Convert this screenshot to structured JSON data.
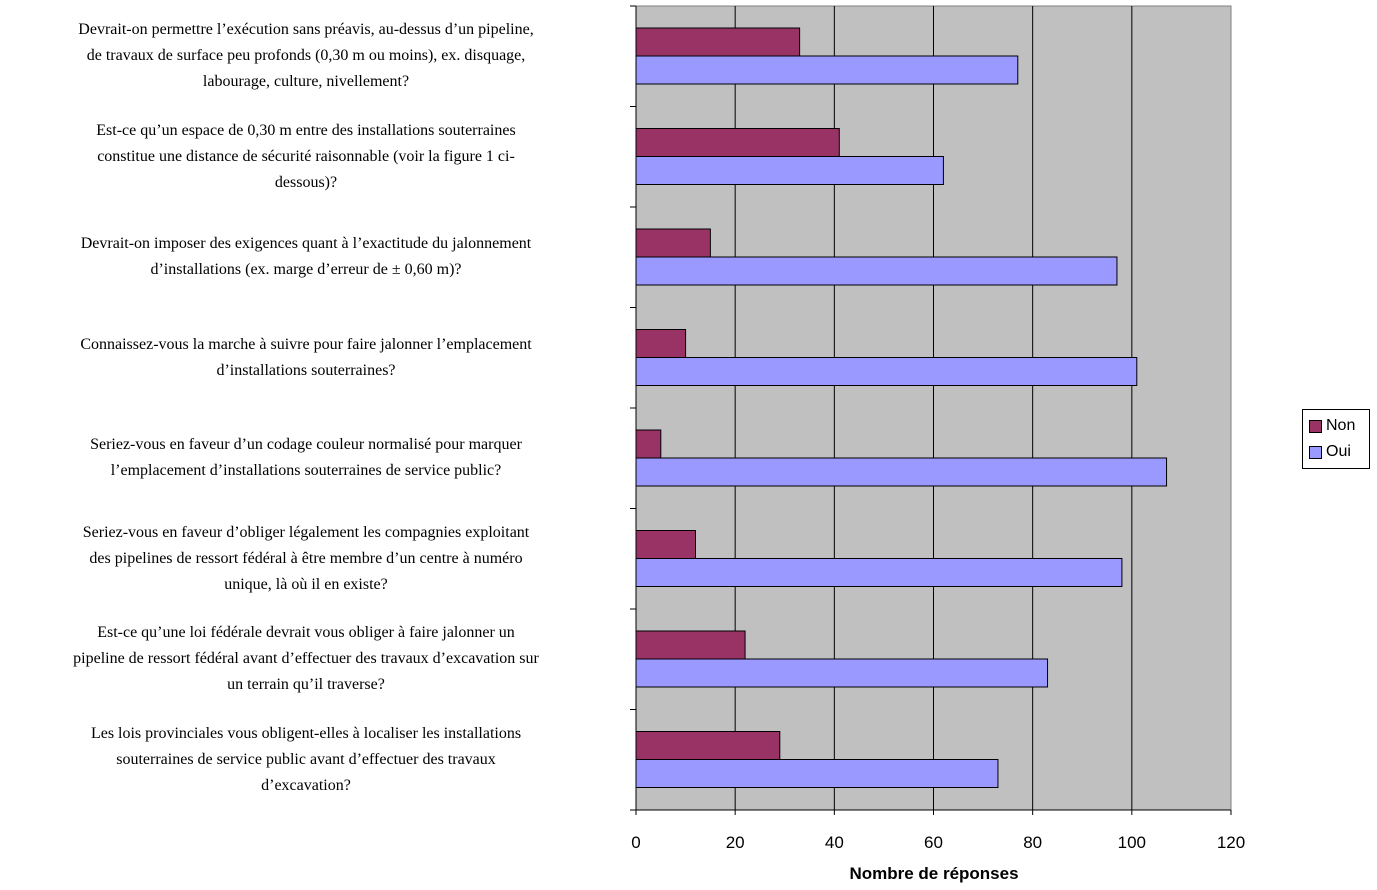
{
  "chart_data": {
    "type": "bar",
    "orientation": "horizontal",
    "categories": [
      "Devrait-on permettre l’exécution sans préavis, au-dessus d’un pipeline, de travaux de surface peu profonds (0,30 m ou moins), ex. disquage, labourage, culture, nivellement?",
      "Est-ce qu’un espace de 0,30 m entre des installations souterraines constitue une distance de sécurité raisonnable (voir la figure 1 ci-dessous)?",
      "Devrait-on imposer des exigences quant à l’exactitude du jalonnement d’installations (ex. marge d’erreur de ± 0,60 m)?",
      "Connaissez-vous la marche à suivre pour faire jalonner l’emplacement d’installations souterraines?",
      "Seriez-vous en faveur d’un codage couleur normalisé pour marquer l’emplacement d’installations souterraines de service public?",
      "Seriez-vous en faveur d’obliger légalement les compagnies exploitant des pipelines de ressort fédéral à être membre d’un centre à numéro unique, là où il en existe?",
      "Est-ce qu’une loi fédérale devrait vous obliger à faire jalonner un pipeline de ressort fédéral avant d’effectuer des travaux d’excavation sur un terrain qu’il traverse?",
      "Les lois provinciales vous obligent-elles à localiser les installations souterraines de service public avant d’effectuer des travaux d’excavation?"
    ],
    "category_lines": [
      [
        "Devrait-on permettre l’exécution sans préavis, au-dessus d’un pipeline,",
        "de travaux de surface peu profonds (0,30 m ou moins), ex. disquage,",
        "labourage, culture, nivellement?"
      ],
      [
        "Est-ce qu’un espace de 0,30 m entre des installations souterraines",
        "constitue une distance de sécurité raisonnable (voir la figure 1 ci-",
        "dessous)?"
      ],
      [
        "Devrait-on imposer des exigences quant à l’exactitude du jalonnement",
        "d’installations (ex. marge d’erreur de ± 0,60 m)?"
      ],
      [
        "Connaissez-vous la marche à suivre pour faire jalonner l’emplacement",
        "d’installations souterraines?"
      ],
      [
        "Seriez-vous en faveur d’un codage couleur normalisé pour marquer",
        "l’emplacement d’installations souterraines de service public?"
      ],
      [
        "Seriez-vous en faveur d’obliger légalement les compagnies exploitant",
        "des pipelines de ressort fédéral à être membre d’un centre à numéro",
        "unique, là où il en existe?"
      ],
      [
        "Est-ce qu’une loi fédérale devrait vous obliger à faire jalonner un",
        "pipeline de ressort fédéral avant d’effectuer des travaux d’excavation sur",
        "un terrain qu’il traverse?"
      ],
      [
        "Les lois provinciales vous obligent-elles à localiser les installations",
        "souterraines de service public avant d’effectuer des travaux",
        "d’excavation?"
      ]
    ],
    "series": [
      {
        "name": "Non",
        "color": "#993366",
        "values": [
          33,
          41,
          15,
          10,
          5,
          12,
          22,
          29
        ]
      },
      {
        "name": "Oui",
        "color": "#9999ff",
        "values": [
          77,
          62,
          97,
          101,
          107,
          98,
          83,
          73
        ]
      }
    ],
    "xlabel": "Nombre de réponses",
    "ylabel": "",
    "xlim": [
      0,
      120
    ],
    "xticks": [
      0,
      20,
      40,
      60,
      80,
      100,
      120
    ],
    "grid": "vertical",
    "plot_background": "#c0c0c0",
    "legend_position": "right"
  }
}
